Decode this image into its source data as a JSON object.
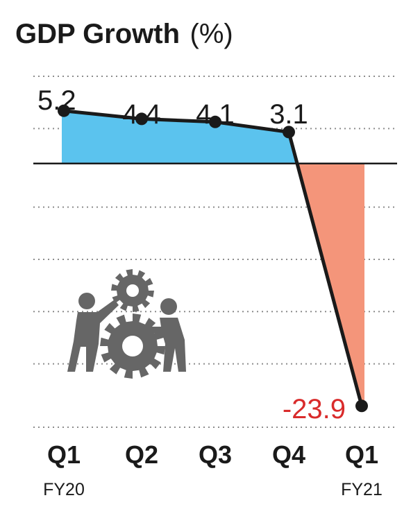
{
  "chart_data": {
    "type": "line",
    "title": "GDP Growth",
    "title_unit": "(%)",
    "categories": [
      "Q1",
      "Q2",
      "Q3",
      "Q4",
      "Q1"
    ],
    "fiscal_year_labels": [
      "FY20",
      "",
      "",
      "",
      "FY21"
    ],
    "values": [
      5.2,
      4.4,
      4.1,
      3.1,
      -23.9
    ],
    "value_labels": [
      "5.2",
      "4.4",
      "4.1",
      "3.1",
      "-23.9"
    ],
    "ylim": [
      -26,
      8.6
    ],
    "gridlines": "dotted",
    "legend": "none",
    "colors": {
      "positive_fill": "#5bc3ee",
      "negative_fill": "#f4957a",
      "line": "#1a1a1a",
      "negative_label": "#d92b2b",
      "gridline": "#8c8c8c",
      "illustration": "#666666"
    }
  },
  "illustration": {
    "icon": "people-turning-gears-icon"
  }
}
